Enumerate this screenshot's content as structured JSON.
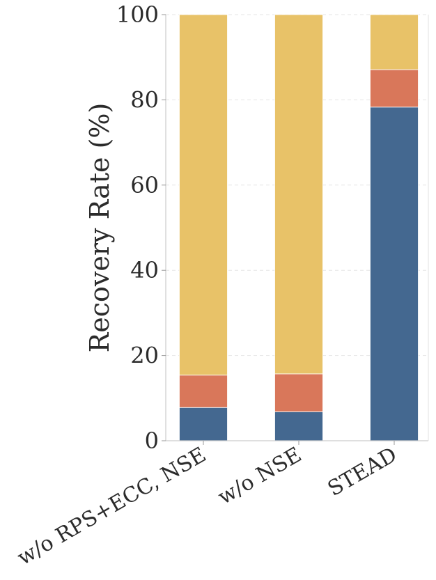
{
  "chart_data": {
    "type": "bar",
    "stacked": true,
    "title": "",
    "xlabel": "",
    "ylabel": "Recovery Rate (%)",
    "ylim": [
      0,
      100
    ],
    "yticks": [
      0,
      20,
      40,
      60,
      80,
      100
    ],
    "grid": true,
    "legend": "none",
    "categories": [
      "w/o RPS+ECC, NSE",
      "w/o NSE",
      "STEAD"
    ],
    "series": [
      {
        "color": "#446890",
        "values": [
          7.8,
          6.8,
          78.3
        ]
      },
      {
        "color": "#d9775a",
        "values": [
          7.6,
          8.9,
          8.8
        ]
      },
      {
        "color": "#e8c268",
        "values": [
          84.6,
          84.3,
          12.9
        ]
      }
    ]
  }
}
